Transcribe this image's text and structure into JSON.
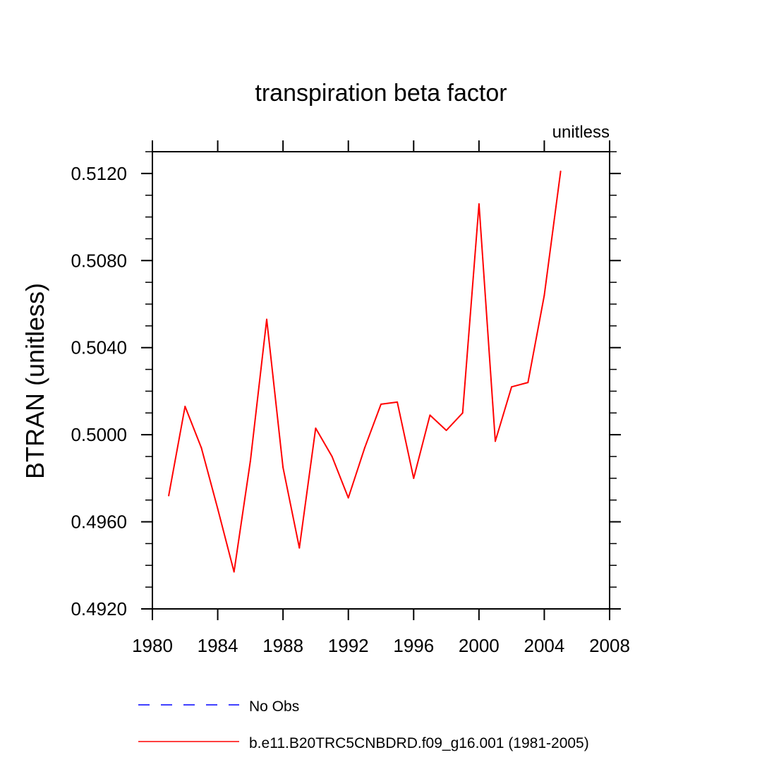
{
  "chart_data": {
    "type": "line",
    "title": "transpiration beta factor",
    "units_label": "unitless",
    "ylabel": "BTRAN  (unitless)",
    "xlabel": "",
    "xlim": [
      1980,
      2008
    ],
    "ylim": [
      0.492,
      0.513
    ],
    "x_ticks": [
      1980,
      1984,
      1988,
      1992,
      1996,
      2000,
      2004,
      2008
    ],
    "x_tick_labels": [
      "1980",
      "1984",
      "1988",
      "1992",
      "1996",
      "2000",
      "2004",
      "2008"
    ],
    "y_ticks": [
      0.492,
      0.496,
      0.5,
      0.504,
      0.508,
      0.512
    ],
    "y_tick_labels": [
      "0.4920",
      "0.4960",
      "0.5000",
      "0.5040",
      "0.5080",
      "0.5120"
    ],
    "grid": false,
    "series": [
      {
        "name": "b.e11.B20TRC5CNBDRD.f09_g16.001 (1981-2005)",
        "color": "#ff0000",
        "x": [
          1981,
          1982,
          1983,
          1984,
          1985,
          1986,
          1987,
          1988,
          1989,
          1990,
          1991,
          1992,
          1993,
          1994,
          1995,
          1996,
          1997,
          1998,
          1999,
          2000,
          2001,
          2002,
          2003,
          2004,
          2005
        ],
        "values": [
          0.4972,
          0.5013,
          0.4994,
          0.4966,
          0.4937,
          0.4988,
          0.5053,
          0.4985,
          0.4948,
          0.5003,
          0.499,
          0.4971,
          0.4994,
          0.5014,
          0.5015,
          0.498,
          0.5009,
          0.5002,
          0.501,
          0.5106,
          0.4997,
          0.5022,
          0.5024,
          0.5064,
          0.5121
        ]
      }
    ],
    "legend": {
      "placement": "bottom",
      "entries": [
        {
          "label": "No Obs",
          "color": "#0000ff",
          "style": "dashed"
        },
        {
          "label": "b.e11.B20TRC5CNBDRD.f09_g16.001 (1981-2005)",
          "color": "#ff0000",
          "style": "solid"
        }
      ]
    }
  }
}
